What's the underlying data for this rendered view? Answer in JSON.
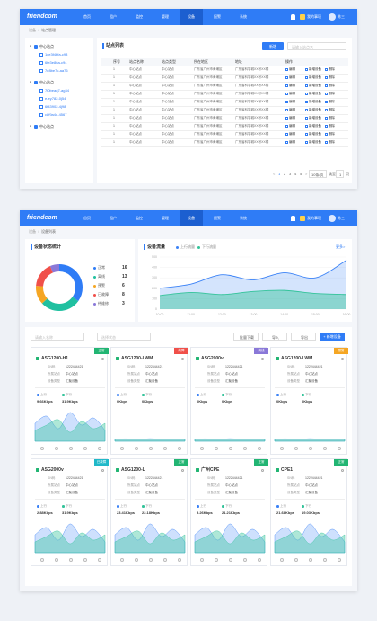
{
  "header": {
    "logo": "friendcom",
    "nav": [
      "首页",
      "租户",
      "监控",
      "管理",
      "设备",
      "报警",
      "系统"
    ],
    "active": 4,
    "tasks": "我的事项",
    "user": "陈三"
  },
  "site_page": {
    "breadcrumb": [
      "设备",
      "站点管理"
    ],
    "tree": [
      {
        "label": "中心站点",
        "children": [
          "1ce3f4bfa-c93",
          "6fe3e86a-c94",
          "7e8be7c-aa76"
        ]
      },
      {
        "label": "中心站点",
        "children": [
          "7f0beaq7-ag34",
          "e-ey782-0j54",
          "6f43902-4j98",
          "c8f9a4d-4567"
        ]
      },
      {
        "label": "中心站点",
        "children": []
      }
    ],
    "list_title": "站点列表",
    "add_button": "新增",
    "search_placeholder": "请输入站点名",
    "table": {
      "columns": [
        "序号",
        "站点名称",
        "站点类型",
        "所在地区",
        "地址",
        "操作"
      ],
      "rows": [
        [
          "1",
          "中心站点",
          "中心站点",
          "广东省广州市黄埔区",
          "广东省科学城XX号XX楼"
        ],
        [
          "1",
          "中心站点",
          "中心站点",
          "广东省广州市黄埔区",
          "广东省科学城XX号XX楼"
        ],
        [
          "1",
          "中心站点",
          "中心站点",
          "广东省广州市黄埔区",
          "广东省科学城XX号XX楼"
        ],
        [
          "1",
          "中心站点",
          "中心站点",
          "广东省广州市黄埔区",
          "广东省科学城XX号XX楼"
        ],
        [
          "1",
          "中心站点",
          "中心站点",
          "广东省广州市黄埔区",
          "广东省科学城XX号XX楼"
        ],
        [
          "1",
          "中心站点",
          "中心站点",
          "广东省广州市黄埔区",
          "广东省科学城XX号XX楼"
        ],
        [
          "1",
          "中心站点",
          "中心站点",
          "广东省广州市黄埔区",
          "广东省科学城XX号XX楼"
        ],
        [
          "1",
          "中心站点",
          "中心站点",
          "广东省广州市黄埔区",
          "广东省科学城XX号XX楼"
        ],
        [
          "1",
          "中心站点",
          "中心站点",
          "广东省广州市黄埔区",
          "广东省科学城XX号XX楼"
        ],
        [
          "1",
          "中心站点",
          "中心站点",
          "广东省广州市黄埔区",
          "广东省科学城XX号XX楼"
        ]
      ],
      "actions": [
        "编辑",
        "新增设备",
        "删除"
      ]
    },
    "pagination": {
      "prev": "<",
      "pages": [
        "1",
        "2",
        "3",
        "4",
        "5"
      ],
      "next": ">",
      "page_size": "10条/页",
      "jump_label": "跳至",
      "jump_value": "1",
      "jump_unit": "页"
    }
  },
  "device_page": {
    "breadcrumb": [
      "设备",
      "设备列表"
    ],
    "search_placeholder": "请输入名称",
    "status_placeholder": "选择状态",
    "buttons": [
      "批量下载",
      "导入",
      "导出",
      "+ 新增设备"
    ],
    "field_labels": [
      "SN码",
      "所属站点",
      "设备类型"
    ],
    "up_label": "上行",
    "down_label": "下行",
    "cards": [
      {
        "name": "ASG1200-H1",
        "status": "正常",
        "status_color": "#22b573",
        "sn": "1222444421",
        "site": "中心站点",
        "type": "汇聚设备",
        "up": "9.66Kbps",
        "down": "31.9Kbps"
      },
      {
        "name": "ASG1200-LWM",
        "status": "故障",
        "status_color": "#f0504a",
        "sn": "1222444421",
        "site": "中心站点",
        "type": "汇聚设备",
        "up": "0Kbps",
        "down": "0Kbps"
      },
      {
        "name": "ASG2000v",
        "status": "离线",
        "status_color": "#8a78d8",
        "sn": "1222444421",
        "site": "中心站点",
        "type": "汇聚设备",
        "up": "0Kbps",
        "down": "0Kbps"
      },
      {
        "name": "ASG1200-LWM",
        "status": "预警",
        "status_color": "#f5a623",
        "sn": "1222444421",
        "site": "中心站点",
        "type": "汇聚设备",
        "up": "0Kbps",
        "down": "0Kbps"
      },
      {
        "name": "ASG2000v",
        "status": "已故障",
        "status_color": "#20b8c8",
        "sn": "1222444421",
        "site": "中心站点",
        "type": "汇聚设备",
        "up": "2.88Kbps",
        "down": "31.9Kbps"
      },
      {
        "name": "ASG1200-L",
        "status": "正常",
        "status_color": "#22b573",
        "sn": "1222444421",
        "site": "中心站点",
        "type": "汇聚设备",
        "up": "23.41Kbps",
        "down": "22.18Kbps"
      },
      {
        "name": "广州CPE",
        "status": "正常",
        "status_color": "#22b573",
        "sn": "1222444421",
        "site": "中心站点",
        "type": "汇聚设备",
        "up": "5.26Kbps",
        "down": "21.21Kbps"
      },
      {
        "name": "CPE1",
        "status": "正常",
        "status_color": "#22b573",
        "sn": "1222444421",
        "site": "中心站点",
        "type": "汇聚设备",
        "up": "21.68Kbps",
        "down": "19.03Kbps"
      }
    ]
  },
  "chart_data": [
    {
      "type": "pie",
      "title": "设备状态统计",
      "categories": [
        "正常",
        "离线",
        "预警",
        "已故障",
        "待维修"
      ],
      "values": [
        16,
        13,
        6,
        8,
        3
      ],
      "colors": [
        "#2f7cf6",
        "#20c0a0",
        "#f5a623",
        "#f0504a",
        "#8a78d8"
      ]
    },
    {
      "type": "line",
      "title": "设备流量",
      "more": "更多>",
      "x": [
        "10:00",
        "11:00",
        "12:00",
        "13:00",
        "14:00",
        "15:00",
        "16:00"
      ],
      "series": [
        {
          "name": "上行流量",
          "color": "#3b82f6",
          "values": [
            200,
            240,
            330,
            280,
            350,
            300,
            470
          ]
        },
        {
          "name": "下行流量",
          "color": "#34c39a",
          "values": [
            130,
            160,
            140,
            170,
            180,
            150,
            140
          ]
        }
      ],
      "ylim": [
        0,
        500
      ],
      "yticks": [
        0,
        100,
        200,
        300,
        400,
        500
      ],
      "grid": true
    }
  ]
}
